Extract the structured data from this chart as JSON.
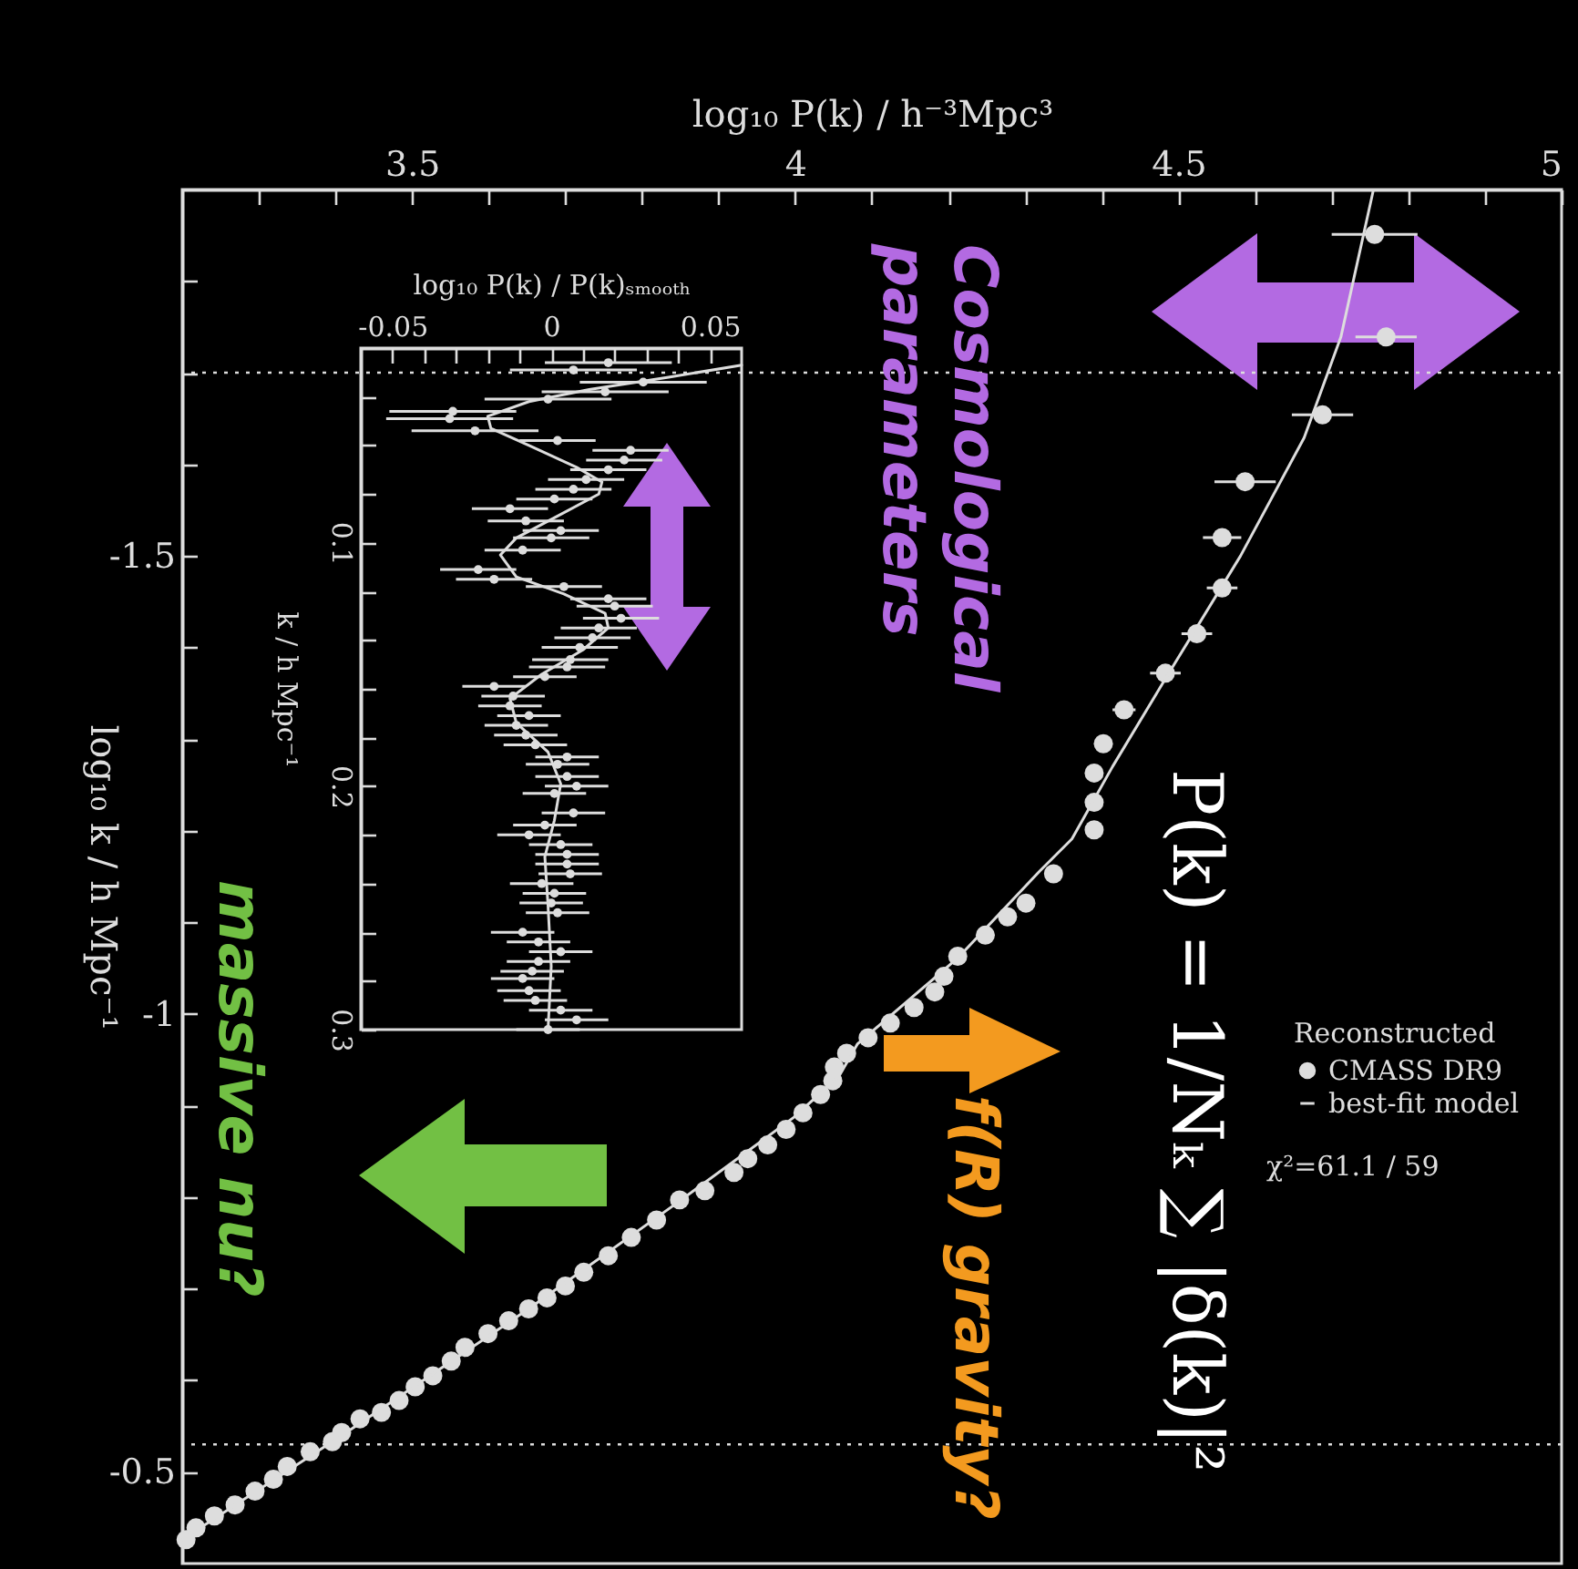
{
  "chart_data": [
    {
      "type": "scatter",
      "xlabel": "log₁₀ P(k) / h⁻³Mpc³",
      "ylabel": "log₁₀ k / h Mpc⁻¹",
      "legend_title": "Reconstructed",
      "legend": "right",
      "marker": "circle",
      "xlim": [
        3.2,
        5
      ],
      "ylim": [
        -0.4,
        -1.9
      ],
      "xticks": [
        {
          "value": 3.3,
          "label": null
        },
        {
          "value": 3.4,
          "label": null
        },
        3.5,
        {
          "value": 3.6,
          "label": null
        },
        {
          "value": 3.7,
          "label": null
        },
        {
          "value": 3.8,
          "label": null
        },
        {
          "value": 3.9,
          "label": null
        },
        4,
        {
          "value": 4.1,
          "label": null
        },
        {
          "value": 4.2,
          "label": null
        },
        {
          "value": 4.3,
          "label": null
        },
        {
          "value": 4.4,
          "label": null
        },
        4.5,
        {
          "value": 4.6,
          "label": null
        },
        {
          "value": 4.7,
          "label": null
        },
        {
          "value": 4.8,
          "label": null
        },
        {
          "value": 4.9,
          "label": null
        },
        5
      ],
      "yticks": [
        {
          "value": -1.8,
          "label": null
        },
        {
          "value": -1.7,
          "label": null
        },
        {
          "value": -1.6,
          "label": null
        },
        -1.5,
        {
          "value": -1.4,
          "label": null
        },
        {
          "value": -1.3,
          "label": null
        },
        {
          "value": -1.2,
          "label": null
        },
        {
          "value": -1.1,
          "label": null
        },
        -1,
        {
          "value": -0.9,
          "label": null
        },
        {
          "value": -0.8,
          "label": null
        },
        {
          "value": -0.7,
          "label": null
        },
        {
          "value": -0.6,
          "label": null
        },
        -0.5
      ],
      "ref_lines": [
        {
          "axis": "y",
          "value": -1.7,
          "color": "#dddddd",
          "line_style": "dotted"
        },
        {
          "axis": "y",
          "value": -0.53,
          "color": "#dddddd",
          "line_style": "dotted"
        }
      ],
      "series": [
        {
          "name": "CMASS DR9",
          "color": "#dddddd",
          "x": [
            4.756,
            4.771,
            4.688,
            4.587,
            4.557,
            4.557,
            4.524,
            4.483,
            4.429,
            4.402,
            4.39,
            4.39,
            4.39,
            4.337,
            4.301,
            4.277,
            4.248,
            4.212,
            4.194,
            4.182,
            4.155,
            4.124,
            4.095,
            4.067,
            4.051,
            4.049,
            4.033,
            4.01,
            3.988,
            3.964,
            3.938,
            3.92,
            3.882,
            3.849,
            3.819,
            3.786,
            3.756,
            3.724,
            3.7,
            3.676,
            3.652,
            3.626,
            3.599,
            3.569,
            3.551,
            3.527,
            3.504,
            3.483,
            3.46,
            3.432,
            3.408,
            3.396,
            3.367,
            3.337,
            3.319,
            3.295,
            3.269,
            3.242,
            3.218,
            3.205
          ],
          "values": [
            -1.851,
            -1.739,
            -1.654,
            -1.581,
            -1.52,
            -1.465,
            -1.415,
            -1.372,
            -1.332,
            -1.295,
            -1.263,
            -1.231,
            -1.201,
            -1.153,
            -1.121,
            -1.106,
            -1.086,
            -1.063,
            -1.041,
            -1.024,
            -1.007,
            -0.99,
            -0.974,
            -0.957,
            -0.942,
            -0.927,
            -0.912,
            -0.892,
            -0.874,
            -0.857,
            -0.842,
            -0.827,
            -0.807,
            -0.797,
            -0.775,
            -0.756,
            -0.736,
            -0.718,
            -0.703,
            -0.69,
            -0.678,
            -0.665,
            -0.651,
            -0.636,
            -0.621,
            -0.605,
            -0.593,
            -0.578,
            -0.565,
            -0.558,
            -0.543,
            -0.533,
            -0.522,
            -0.506,
            -0.492,
            -0.479,
            -0.464,
            -0.452,
            -0.439,
            -0.426
          ],
          "xerrors": [
            0.056,
            0.04,
            0.04,
            0.04,
            0.025,
            0.02,
            0.02,
            0.02,
            0.015,
            0.012,
            null,
            null,
            null,
            null,
            null,
            null,
            null,
            null,
            null,
            null,
            null,
            null,
            null,
            null,
            null,
            null,
            null,
            null,
            null,
            null,
            null,
            null,
            null,
            null,
            null,
            null,
            null,
            null,
            null,
            null,
            null,
            null,
            null,
            null,
            null,
            null,
            null,
            null,
            null,
            null,
            null,
            null,
            null,
            null,
            null,
            null,
            null,
            null,
            null,
            null
          ]
        },
        {
          "name": "best-fit model",
          "type": "line",
          "marker": "none",
          "color": "#dddddd",
          "x": [
            4.754,
            4.712,
            4.664,
            4.581,
            4.486,
            4.414,
            4.361,
            4.319,
            4.212,
            4.081,
            4.057,
            3.998,
            3.843,
            3.652,
            3.414,
            3.2
          ],
          "values": [
            -1.898,
            -1.739,
            -1.629,
            -1.5,
            -1.37,
            -1.27,
            -1.191,
            -1.156,
            -1.061,
            -0.967,
            -0.932,
            -0.887,
            -0.792,
            -0.678,
            -0.543,
            -0.426
          ]
        }
      ],
      "annotations": [
        "Cosmological parameters",
        "massive nu?",
        "f(R) gravity?",
        "P(k) = 1/Nₖ ∑ |δ(k)|²",
        "χ²=61.1 / 59"
      ]
    },
    {
      "type": "scatter",
      "xlabel": "log₁₀ P(k) / P(k)ₛₘₒₒₜₕ",
      "ylabel": "k / h Mpc⁻¹",
      "marker": "circle",
      "xlim": [
        -0.06,
        0.06
      ],
      "ylim": [
        0.3,
        0.02
      ],
      "xticks": [
        -0.05,
        {
          "value": -0.04,
          "label": null
        },
        {
          "value": -0.03,
          "label": null
        },
        {
          "value": -0.02,
          "label": null
        },
        {
          "value": -0.01,
          "label": null
        },
        0,
        {
          "value": 0.01,
          "label": null
        },
        {
          "value": 0.02,
          "label": null
        },
        {
          "value": 0.03,
          "label": null
        },
        {
          "value": 0.04,
          "label": null
        },
        0.05
      ],
      "yticks": [
        {
          "value": 0.04,
          "label": null
        },
        {
          "value": 0.06,
          "label": null
        },
        {
          "value": 0.08,
          "label": null
        },
        0.1,
        {
          "value": 0.12,
          "label": null
        },
        {
          "value": 0.14,
          "label": null
        },
        {
          "value": 0.16,
          "label": null
        },
        {
          "value": 0.18,
          "label": null
        },
        0.2,
        {
          "value": 0.22,
          "label": null
        },
        {
          "value": 0.24,
          "label": null
        },
        {
          "value": 0.26,
          "label": null
        },
        {
          "value": 0.28,
          "label": null
        },
        0.3
      ],
      "series": [
        {
          "color": "#dddddd",
          "x": [
            0.018,
            0.007,
            0.029,
            0.017,
            -0.001,
            -0.031,
            -0.032,
            -0.024,
            0.002,
            0.025,
            0.023,
            0.018,
            0.011,
            0.007,
            0.001,
            -0.013,
            -0.008,
            0.003,
            0.0,
            -0.009,
            -0.023,
            -0.018,
            0.004,
            0.018,
            0.02,
            0.022,
            0.015,
            0.013,
            0.009,
            0.006,
            0.005,
            -0.002,
            -0.018,
            -0.012,
            -0.013,
            -0.007,
            -0.011,
            -0.008,
            -0.005,
            0.005,
            0.002,
            0.005,
            0.008,
            0.001,
            0.007,
            -0.002,
            -0.007,
            0.003,
            0.005,
            0.005,
            0.006,
            -0.003,
            0.001,
            0.0,
            0.002,
            -0.009,
            -0.004,
            0.003,
            -0.004,
            -0.006,
            -0.009,
            -0.007,
            -0.005,
            0.003,
            0.008,
            -0.001
          ],
          "values": [
            0.026,
            0.029,
            0.034,
            0.038,
            0.041,
            0.046,
            0.049,
            0.054,
            0.058,
            0.062,
            0.066,
            0.07,
            0.074,
            0.078,
            0.082,
            0.086,
            0.091,
            0.095,
            0.098,
            0.103,
            0.111,
            0.115,
            0.118,
            0.123,
            0.126,
            0.131,
            0.135,
            0.139,
            0.143,
            0.148,
            0.151,
            0.155,
            0.159,
            0.163,
            0.167,
            0.171,
            0.175,
            0.179,
            0.183,
            0.188,
            0.191,
            0.196,
            0.2,
            0.203,
            0.211,
            0.216,
            0.22,
            0.224,
            0.228,
            0.232,
            0.236,
            0.24,
            0.244,
            0.248,
            0.252,
            0.26,
            0.264,
            0.268,
            0.272,
            0.276,
            0.279,
            0.284,
            0.288,
            0.292,
            0.296,
            0.3
          ],
          "xerrors": [
            0.02,
            0.02,
            0.02,
            0.02,
            0.02,
            0.02,
            0.02,
            0.02,
            0.012,
            0.012,
            0.012,
            0.012,
            0.012,
            0.012,
            0.012,
            0.012,
            0.012,
            0.012,
            0.012,
            0.012,
            0.012,
            0.012,
            0.012,
            0.012,
            0.012,
            0.012,
            0.012,
            0.012,
            0.012,
            0.012,
            0.012,
            0.01,
            0.01,
            0.01,
            0.01,
            0.01,
            0.01,
            0.01,
            0.01,
            0.01,
            0.01,
            0.01,
            0.01,
            0.01,
            0.01,
            0.01,
            0.01,
            0.01,
            0.01,
            0.01,
            0.01,
            0.01,
            0.01,
            0.01,
            0.01,
            0.01,
            0.01,
            0.01,
            0.01,
            0.01,
            0.01,
            0.01,
            0.01,
            0.01,
            0.01,
            0.01
          ]
        },
        {
          "type": "line",
          "marker": "none",
          "color": "#dddddd",
          "x": [
            0.06,
            0.037,
            0.012,
            -0.007,
            -0.02,
            -0.019,
            -0.007,
            0.008,
            0.016,
            0.015,
            0.002,
            -0.011,
            -0.016,
            -0.011,
            0.004,
            0.017,
            0.018,
            0.01,
            -0.003,
            -0.013,
            -0.011,
            -0.001,
            0.003,
            0.001,
            -0.002,
            -0.001,
            0.0,
            -0.001
          ],
          "values": [
            0.027,
            0.032,
            0.037,
            0.042,
            0.048,
            0.053,
            0.06,
            0.069,
            0.075,
            0.08,
            0.089,
            0.098,
            0.105,
            0.114,
            0.121,
            0.129,
            0.135,
            0.144,
            0.154,
            0.164,
            0.174,
            0.186,
            0.199,
            0.214,
            0.229,
            0.249,
            0.274,
            0.3
          ]
        }
      ]
    }
  ]
}
